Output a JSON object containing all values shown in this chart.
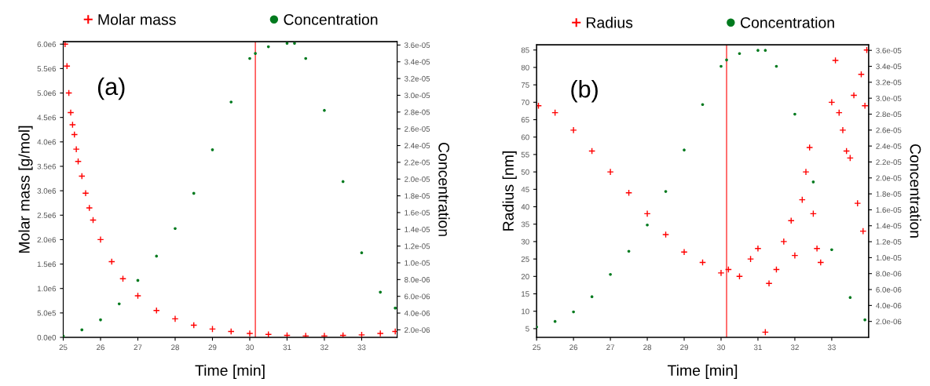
{
  "chart_data": [
    {
      "type": "scatter",
      "xlabel": "Time [min]",
      "ylabel": "Molar mass [g/mol]",
      "y2label": "Concentration",
      "annotations": [
        "(a)"
      ],
      "xlim": [
        25,
        33.95
      ],
      "xticks": [
        25,
        26,
        27,
        28,
        29,
        30,
        31,
        32,
        33
      ],
      "ylim": [
        0,
        6050000.0
      ],
      "yticks": [
        {
          "value": 0,
          "label": "0.0e0"
        },
        {
          "value": 500000,
          "label": "5.0e5"
        },
        {
          "value": 1000000,
          "label": "1.0e6"
        },
        {
          "value": 1500000,
          "label": "1.5e6"
        },
        {
          "value": 2000000,
          "label": "2.0e6"
        },
        {
          "value": 2500000,
          "label": "2.5e6"
        },
        {
          "value": 3000000,
          "label": "3.0e6"
        },
        {
          "value": 3500000,
          "label": "3.5e6"
        },
        {
          "value": 4000000,
          "label": "4.0e6"
        },
        {
          "value": 4500000,
          "label": "4.5e6"
        },
        {
          "value": 5000000,
          "label": "5.0e6"
        },
        {
          "value": 5500000,
          "label": "5.5e6"
        },
        {
          "value": 6000000,
          "label": "6.0e6"
        }
      ],
      "y2lim": [
        1.1e-06,
        3.64e-05
      ],
      "y2ticks": [
        {
          "value": 2e-06,
          "label": "2.0e-06"
        },
        {
          "value": 4e-06,
          "label": "4.0e-06"
        },
        {
          "value": 6e-06,
          "label": "6.0e-06"
        },
        {
          "value": 8e-06,
          "label": "8.0e-06"
        },
        {
          "value": 1e-05,
          "label": "1.0e-05"
        },
        {
          "value": 1.2e-05,
          "label": "1.2e-05"
        },
        {
          "value": 1.4e-05,
          "label": "1.4e-05"
        },
        {
          "value": 1.6e-05,
          "label": "1.6e-05"
        },
        {
          "value": 1.8e-05,
          "label": "1.8e-05"
        },
        {
          "value": 2e-05,
          "label": "2.0e-05"
        },
        {
          "value": 2.2e-05,
          "label": "2.2e-05"
        },
        {
          "value": 2.4e-05,
          "label": "2.4e-05"
        },
        {
          "value": 2.6e-05,
          "label": "2.6e-05"
        },
        {
          "value": 2.8e-05,
          "label": "2.8e-05"
        },
        {
          "value": 3e-05,
          "label": "3.0e-05"
        },
        {
          "value": 3.2e-05,
          "label": "3.2e-05"
        },
        {
          "value": 3.4e-05,
          "label": "3.4e-05"
        },
        {
          "value": 3.6e-05,
          "label": "3.6e-05"
        }
      ],
      "ref_lines": [
        {
          "axis": "x",
          "value": 30.15,
          "color": "#ff3030"
        }
      ],
      "legend": "top",
      "grid": false,
      "series": [
        {
          "name": "Molar mass",
          "color": "#ff0000",
          "marker": "cross",
          "x": [
            25.05,
            25.1,
            25.15,
            25.2,
            25.25,
            25.3,
            25.35,
            25.4,
            25.5,
            25.6,
            25.7,
            25.8,
            26.0,
            26.3,
            26.6,
            27.0,
            27.5,
            28.0,
            28.5,
            29.0,
            29.5,
            30.0,
            30.5,
            31.0,
            31.5,
            32.0,
            32.5,
            33.0,
            33.5,
            33.9
          ],
          "values": [
            6000000,
            5550000,
            5000000,
            4600000,
            4350000,
            4150000,
            3850000,
            3600000,
            3300000,
            2950000,
            2650000,
            2400000,
            2000000,
            1550000,
            1200000,
            850000,
            550000,
            380000,
            250000,
            170000,
            120000,
            80000,
            60000,
            40000,
            30000,
            30000,
            40000,
            50000,
            80000,
            120000
          ]
        },
        {
          "name": "Concentration",
          "color": "#007a1e",
          "marker": "circle",
          "axis": "y2",
          "x": [
            25.0,
            25.5,
            26.0,
            26.5,
            27.0,
            27.5,
            28.0,
            28.5,
            29.0,
            29.5,
            30.0,
            30.15,
            30.5,
            31.0,
            31.2,
            31.5,
            32.0,
            32.5,
            33.0,
            33.5,
            33.9
          ],
          "values": [
            1.25e-06,
            2e-06,
            3.2e-06,
            5.1e-06,
            7.9e-06,
            1.08e-05,
            1.41e-05,
            1.83e-05,
            2.35e-05,
            2.92e-05,
            3.44e-05,
            3.5e-05,
            3.58e-05,
            3.62e-05,
            3.62e-05,
            3.44e-05,
            2.82e-05,
            1.97e-05,
            1.12e-05,
            6.5e-06,
            4.6e-06
          ]
        }
      ]
    },
    {
      "type": "scatter",
      "xlabel": "Time [min]",
      "ylabel": "Radius [nm]",
      "y2label": "Concentration",
      "annotations": [
        "(b)"
      ],
      "xlim": [
        25,
        34
      ],
      "xticks": [
        25,
        26,
        27,
        28,
        29,
        30,
        31,
        32,
        33
      ],
      "ylim": [
        2.5,
        86.5
      ],
      "yticks": [
        5,
        10,
        15,
        20,
        25,
        30,
        35,
        40,
        45,
        50,
        55,
        60,
        65,
        70,
        75,
        80,
        85
      ],
      "y2lim": [
        0,
        3.67e-05
      ],
      "y2ticks": [
        {
          "value": 2e-06,
          "label": "2.0e-06"
        },
        {
          "value": 4e-06,
          "label": "4.0e-06"
        },
        {
          "value": 6e-06,
          "label": "6.0e-06"
        },
        {
          "value": 8e-06,
          "label": "8.0e-06"
        },
        {
          "value": 1e-05,
          "label": "1.0e-05"
        },
        {
          "value": 1.2e-05,
          "label": "1.2e-05"
        },
        {
          "value": 1.4e-05,
          "label": "1.4e-05"
        },
        {
          "value": 1.6e-05,
          "label": "1.6e-05"
        },
        {
          "value": 1.8e-05,
          "label": "1.8e-05"
        },
        {
          "value": 2e-05,
          "label": "2.0e-05"
        },
        {
          "value": 2.2e-05,
          "label": "2.2e-05"
        },
        {
          "value": 2.4e-05,
          "label": "2.4e-05"
        },
        {
          "value": 2.6e-05,
          "label": "2.6e-05"
        },
        {
          "value": 2.8e-05,
          "label": "2.8e-05"
        },
        {
          "value": 3e-05,
          "label": "3.0e-05"
        },
        {
          "value": 3.2e-05,
          "label": "3.2e-05"
        },
        {
          "value": 3.4e-05,
          "label": "3.4e-05"
        },
        {
          "value": 3.6e-05,
          "label": "3.6e-05"
        }
      ],
      "ref_lines": [
        {
          "axis": "x",
          "value": 30.15,
          "color": "#ff3030"
        }
      ],
      "legend": "top",
      "grid": false,
      "series": [
        {
          "name": "Radius",
          "color": "#ff0000",
          "marker": "cross",
          "x": [
            25.05,
            25.5,
            26.0,
            26.5,
            27.0,
            27.5,
            28.0,
            28.5,
            29.0,
            29.5,
            30.0,
            30.2,
            30.5,
            30.8,
            31.0,
            31.2,
            31.3,
            31.5,
            31.7,
            31.9,
            32.0,
            32.2,
            32.3,
            32.4,
            32.5,
            32.6,
            32.7,
            33.0,
            33.1,
            33.2,
            33.3,
            33.4,
            33.5,
            33.6,
            33.7,
            33.8,
            33.85,
            33.9,
            33.95
          ],
          "values": [
            69,
            67,
            62,
            56,
            50,
            44,
            38,
            32,
            27,
            24,
            21,
            22,
            20,
            25,
            28,
            4,
            18,
            22,
            30,
            36,
            26,
            42,
            50,
            57,
            38,
            28,
            24,
            70,
            82,
            67,
            62,
            56,
            54,
            72,
            41,
            78,
            33,
            69,
            85
          ]
        },
        {
          "name": "Concentration",
          "color": "#007a1e",
          "marker": "circle",
          "axis": "y2",
          "x": [
            25.0,
            25.5,
            26.0,
            26.5,
            27.0,
            27.5,
            28.0,
            28.5,
            29.0,
            29.5,
            30.0,
            30.15,
            30.5,
            31.0,
            31.2,
            31.5,
            32.0,
            32.5,
            33.0,
            33.5,
            33.9
          ],
          "values": [
            1.3e-06,
            2e-06,
            3.2e-06,
            5.1e-06,
            7.9e-06,
            1.08e-05,
            1.41e-05,
            1.83e-05,
            2.35e-05,
            2.92e-05,
            3.4e-05,
            3.48e-05,
            3.56e-05,
            3.6e-05,
            3.6e-05,
            3.4e-05,
            2.8e-05,
            1.95e-05,
            1.1e-05,
            5e-06,
            2.2e-06
          ]
        }
      ]
    }
  ]
}
